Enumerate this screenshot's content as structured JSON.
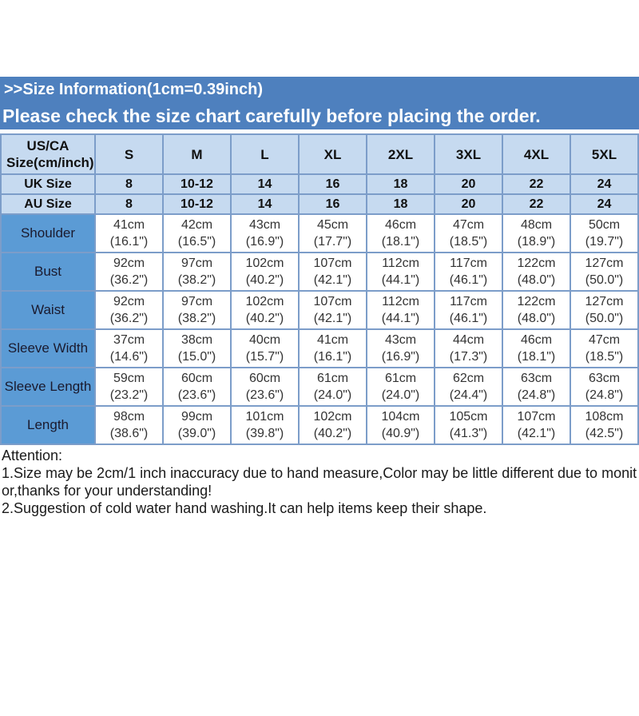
{
  "banner": {
    "line1": ">>Size Information(1cm=0.39inch)",
    "line2": "Please check the size chart carefully before placing the order.",
    "bg_color": "#4E80BE",
    "text_color": "#FFFFFF"
  },
  "table": {
    "corner_header": "US/CA Size(cm/inch)",
    "size_columns": [
      "S",
      "M",
      "L",
      "XL",
      "2XL",
      "3XL",
      "4XL",
      "5XL"
    ],
    "size_rows": [
      {
        "label": "UK Size",
        "values": [
          "8",
          "10-12",
          "14",
          "16",
          "18",
          "20",
          "22",
          "24"
        ]
      },
      {
        "label": "AU Size",
        "values": [
          "8",
          "10-12",
          "14",
          "16",
          "18",
          "20",
          "22",
          "24"
        ]
      }
    ],
    "measurement_rows": [
      {
        "label": "Shoulder",
        "cm": [
          "41cm",
          "42cm",
          "43cm",
          "45cm",
          "46cm",
          "47cm",
          "48cm",
          "50cm"
        ],
        "inch": [
          "(16.1\")",
          "(16.5\")",
          "(16.9\")",
          "(17.7\")",
          "(18.1\")",
          "(18.5\")",
          "(18.9\")",
          "(19.7\")"
        ]
      },
      {
        "label": "Bust",
        "cm": [
          "92cm",
          "97cm",
          "102cm",
          "107cm",
          "112cm",
          "117cm",
          "122cm",
          "127cm"
        ],
        "inch": [
          "(36.2\")",
          "(38.2\")",
          "(40.2\")",
          "(42.1\")",
          "(44.1\")",
          "(46.1\")",
          "(48.0\")",
          "(50.0\")"
        ]
      },
      {
        "label": "Waist",
        "cm": [
          "92cm",
          "97cm",
          "102cm",
          "107cm",
          "112cm",
          "117cm",
          "122cm",
          "127cm"
        ],
        "inch": [
          "(36.2\")",
          "(38.2\")",
          "(40.2\")",
          "(42.1\")",
          "(44.1\")",
          "(46.1\")",
          "(48.0\")",
          "(50.0\")"
        ]
      },
      {
        "label": "Sleeve Width",
        "cm": [
          "37cm",
          "38cm",
          "40cm",
          "41cm",
          "43cm",
          "44cm",
          "46cm",
          "47cm"
        ],
        "inch": [
          "(14.6\")",
          "(15.0\")",
          "(15.7\")",
          "(16.1\")",
          "(16.9\")",
          "(17.3\")",
          "(18.1\")",
          "(18.5\")"
        ]
      },
      {
        "label": "Sleeve Length",
        "cm": [
          "59cm",
          "60cm",
          "60cm",
          "61cm",
          "61cm",
          "62cm",
          "63cm",
          "63cm"
        ],
        "inch": [
          "(23.2\")",
          "(23.6\")",
          "(23.6\")",
          "(24.0\")",
          "(24.0\")",
          "(24.4\")",
          "(24.8\")",
          "(24.8\")"
        ]
      },
      {
        "label": "Length",
        "cm": [
          "98cm",
          "99cm",
          "101cm",
          "102cm",
          "104cm",
          "105cm",
          "107cm",
          "108cm"
        ],
        "inch": [
          "(38.6\")",
          "(39.0\")",
          "(39.8\")",
          "(40.2\")",
          "(40.9\")",
          "(41.3\")",
          "(42.1\")",
          "(42.5\")"
        ]
      }
    ],
    "colors": {
      "header_bg": "#C6DAF0",
      "label_bg": "#5B9BD5",
      "grid_line": "#7C9DC9",
      "cell_bg": "#FFFFFF"
    }
  },
  "attention": {
    "title": "Attention:",
    "notes": [
      "1.Size may be 2cm/1 inch inaccuracy due to hand measure,Color may be little different due to monitor,thanks for your understanding!",
      "2.Suggestion of cold water hand washing.It can help items keep their shape."
    ]
  }
}
